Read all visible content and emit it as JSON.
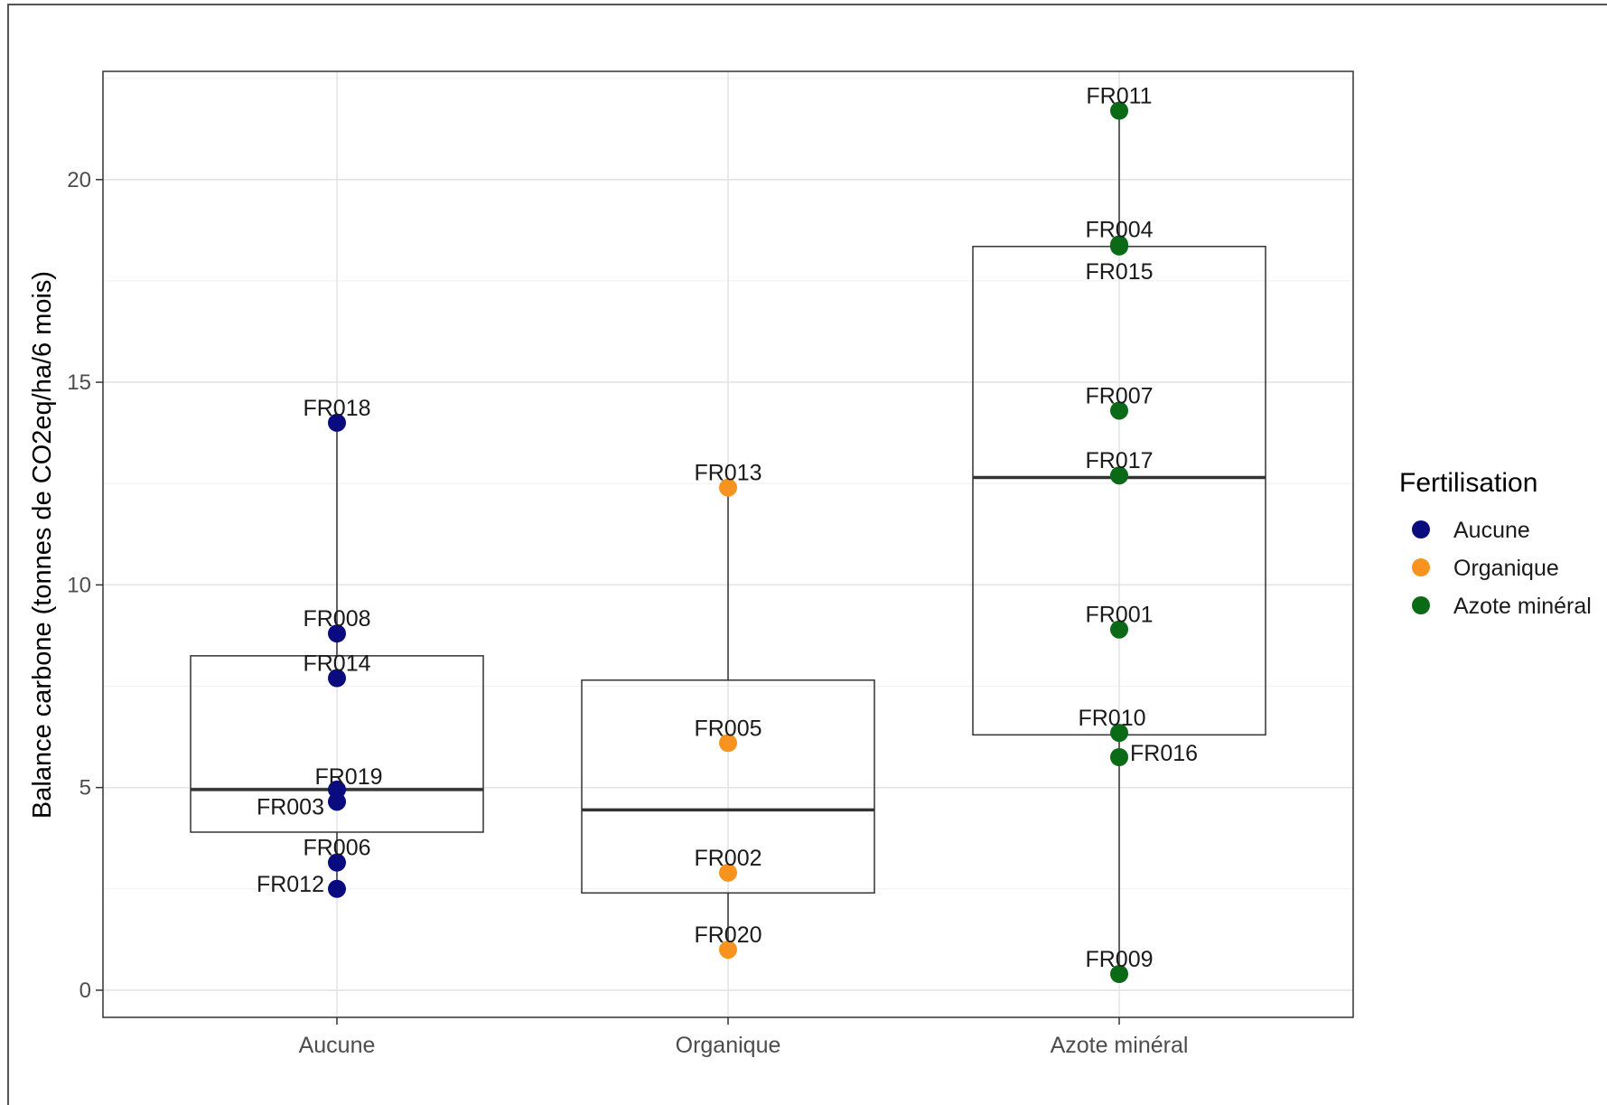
{
  "chart_data": {
    "type": "boxplot",
    "ylabel": "Balance carbone (tonnes de CO2eq/ha/6 mois)",
    "xlabel": "",
    "ylim": [
      -0.67,
      22.67
    ],
    "yticks": [
      0,
      5,
      10,
      15,
      20
    ],
    "grid": true,
    "legend_position": "right",
    "categories": [
      "Aucune",
      "Organique",
      "Azote minéral"
    ],
    "boxes": [
      {
        "category": "Aucune",
        "min": 2.5,
        "q1": 3.9,
        "median": 4.95,
        "q3": 8.25,
        "max": 14.0
      },
      {
        "category": "Organique",
        "min": 1.0,
        "q1": 2.4,
        "median": 4.45,
        "q3": 7.65,
        "max": 12.4
      },
      {
        "category": "Azote minéral",
        "min": 0.4,
        "q1": 6.3,
        "median": 12.65,
        "q3": 18.35,
        "max": 21.7
      }
    ],
    "points": [
      {
        "id": "FR018",
        "category": "Aucune",
        "y": 14.0
      },
      {
        "id": "FR008",
        "category": "Aucune",
        "y": 8.8
      },
      {
        "id": "FR014",
        "category": "Aucune",
        "y": 7.7
      },
      {
        "id": "FR019",
        "category": "Aucune",
        "y": 4.95
      },
      {
        "id": "FR003",
        "category": "Aucune",
        "y": 4.65
      },
      {
        "id": "FR006",
        "category": "Aucune",
        "y": 3.15
      },
      {
        "id": "FR012",
        "category": "Aucune",
        "y": 2.5
      },
      {
        "id": "FR013",
        "category": "Organique",
        "y": 12.4
      },
      {
        "id": "FR005",
        "category": "Organique",
        "y": 6.1
      },
      {
        "id": "FR002",
        "category": "Organique",
        "y": 2.9
      },
      {
        "id": "FR020",
        "category": "Organique",
        "y": 1.0
      },
      {
        "id": "FR011",
        "category": "Azote minéral",
        "y": 21.7
      },
      {
        "id": "FR004",
        "category": "Azote minéral",
        "y": 18.4
      },
      {
        "id": "FR015",
        "category": "Azote minéral",
        "y": 18.35
      },
      {
        "id": "FR007",
        "category": "Azote minéral",
        "y": 14.3
      },
      {
        "id": "FR017",
        "category": "Azote minéral",
        "y": 12.7
      },
      {
        "id": "FR001",
        "category": "Azote minéral",
        "y": 8.9
      },
      {
        "id": "FR010",
        "category": "Azote minéral",
        "y": 6.35
      },
      {
        "id": "FR016",
        "category": "Azote minéral",
        "y": 5.75
      },
      {
        "id": "FR009",
        "category": "Azote minéral",
        "y": 0.4
      }
    ],
    "legend": {
      "title": "Fertilisation",
      "entries": [
        {
          "label": "Aucune",
          "color": "#0b0b80"
        },
        {
          "label": "Organique",
          "color": "#f7931e"
        },
        {
          "label": "Azote minéral",
          "color": "#0a6a16"
        }
      ]
    }
  }
}
